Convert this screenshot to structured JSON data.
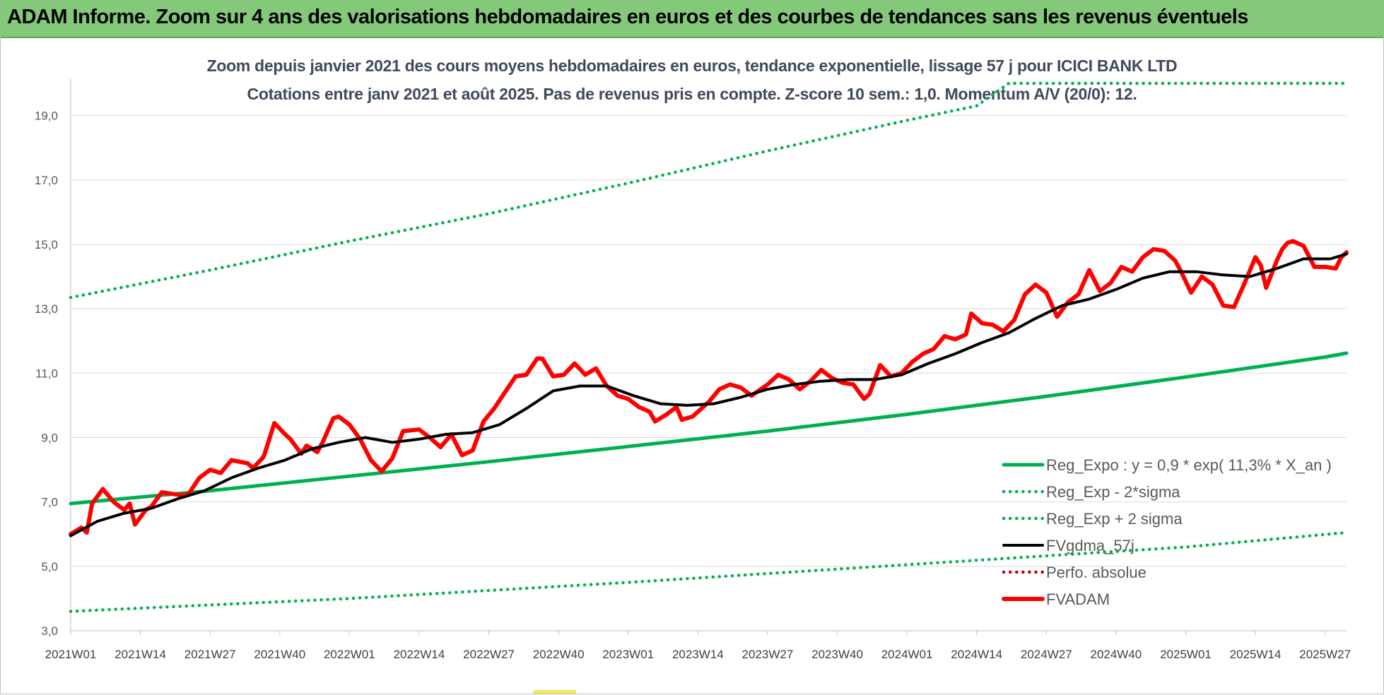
{
  "banner": {
    "title": "ADAM Informe. Zoom sur 4 ans des valorisations hebdomadaires en euros et des courbes de tendances sans les revenus éventuels"
  },
  "colors": {
    "banner_bg": "#84c97a",
    "trend": "#00b050",
    "fvgdma": "#000000",
    "fvadam": "#ff0000",
    "perfo": "#c00000"
  },
  "chart_data": {
    "type": "line",
    "title": "Zoom depuis janvier 2021 des cours moyens hebdomadaires en euros, tendance exponentielle, lissage 57 j pour ICICI BANK LTD",
    "subtitle": "Cotations entre janv 2021 et août 2025.  Pas de revenus pris en compte. Z-score 10 sem.: 1,0. Momentum A/V (20/0): 12.",
    "ylim": [
      3.0,
      20.0
    ],
    "yticks": [
      "3,0",
      "5,0",
      "7,0",
      "9,0",
      "11,0",
      "13,0",
      "15,0",
      "17,0",
      "19,0"
    ],
    "ytick_values": [
      3,
      5,
      7,
      9,
      11,
      13,
      15,
      17,
      19
    ],
    "x_categories": [
      "2021W01",
      "2021W14",
      "2021W27",
      "2021W40",
      "2022W01",
      "2022W14",
      "2022W27",
      "2022W40",
      "2023W01",
      "2023W14",
      "2023W27",
      "2023W40",
      "2024W01",
      "2024W14",
      "2024W27",
      "2024W40",
      "2025W01",
      "2025W14",
      "2025W27"
    ],
    "x_week_index_of_ticks": [
      0,
      13,
      26,
      39,
      52,
      65,
      78,
      91,
      104,
      117,
      130,
      143,
      156,
      169,
      182,
      195,
      208,
      221,
      234
    ],
    "n_weeks": 239,
    "grid": "horizontal",
    "legend_position": "bottom-right",
    "series": [
      {
        "name": "Reg_Expo : y = 0,9 * exp( 11,3% *  X_an )",
        "style": "solid",
        "color": "#00b050",
        "x": [
          0,
          26,
          52,
          78,
          104,
          130,
          156,
          182,
          208,
          234,
          238
        ],
        "y": [
          6.95,
          7.35,
          7.8,
          8.25,
          8.72,
          9.2,
          9.72,
          10.28,
          10.88,
          11.5,
          11.62
        ]
      },
      {
        "name": "Reg_Exp - 2*sigma",
        "style": "dotted",
        "color": "#00b050",
        "x": [
          0,
          52,
          104,
          156,
          208,
          238
        ],
        "y": [
          3.6,
          4.0,
          4.5,
          5.05,
          5.6,
          6.05
        ]
      },
      {
        "name": "Reg_Exp + 2 sigma",
        "style": "dotted",
        "color": "#00b050",
        "x": [
          0,
          26,
          52,
          78,
          104,
          130,
          156,
          169,
          175,
          238
        ],
        "y": [
          13.35,
          14.2,
          15.1,
          15.95,
          16.9,
          17.9,
          18.85,
          19.3,
          20.0,
          20.0
        ]
      },
      {
        "name": "FVgdma_57j",
        "style": "solid",
        "color": "#000000",
        "x": [
          0,
          5,
          10,
          15,
          20,
          25,
          30,
          35,
          40,
          45,
          50,
          55,
          60,
          65,
          70,
          75,
          80,
          85,
          90,
          95,
          100,
          105,
          110,
          115,
          120,
          125,
          130,
          135,
          140,
          145,
          150,
          155,
          160,
          165,
          170,
          175,
          180,
          185,
          190,
          195,
          200,
          205,
          210,
          215,
          220,
          225,
          230,
          235,
          238
        ],
        "y": [
          5.95,
          6.4,
          6.65,
          6.8,
          7.1,
          7.35,
          7.75,
          8.05,
          8.3,
          8.65,
          8.85,
          9.0,
          8.85,
          8.95,
          9.1,
          9.15,
          9.4,
          9.9,
          10.45,
          10.6,
          10.6,
          10.3,
          10.05,
          10.0,
          10.05,
          10.25,
          10.5,
          10.65,
          10.75,
          10.8,
          10.8,
          10.95,
          11.3,
          11.6,
          11.95,
          12.25,
          12.7,
          13.1,
          13.3,
          13.6,
          13.95,
          14.15,
          14.15,
          14.05,
          14.0,
          14.25,
          14.55,
          14.55,
          14.7
        ]
      },
      {
        "name": "Perfo. absolue",
        "style": "dotted",
        "color": "#c00000",
        "x": [],
        "y": []
      },
      {
        "name": "FVADAM",
        "style": "solid-thick",
        "color": "#ff0000",
        "x": [
          0,
          2,
          3,
          4,
          6,
          8,
          10,
          11,
          12,
          14,
          15,
          17,
          19,
          21,
          22,
          24,
          26,
          28,
          30,
          33,
          34,
          36,
          38,
          40,
          41,
          43,
          44,
          46,
          47,
          49,
          50,
          52,
          54,
          56,
          58,
          60,
          62,
          65,
          67,
          69,
          71,
          73,
          75,
          77,
          79,
          81,
          83,
          85,
          87,
          88,
          90,
          92,
          94,
          96,
          98,
          100,
          102,
          104,
          106,
          108,
          109,
          111,
          113,
          114,
          116,
          117,
          119,
          121,
          123,
          125,
          127,
          130,
          132,
          134,
          136,
          138,
          140,
          142,
          144,
          146,
          148,
          149,
          151,
          153,
          155,
          157,
          159,
          161,
          163,
          165,
          167,
          168,
          170,
          172,
          174,
          176,
          178,
          180,
          182,
          184,
          186,
          188,
          190,
          192,
          194,
          196,
          198,
          200,
          202,
          204,
          206,
          207,
          209,
          211,
          213,
          215,
          217,
          219,
          221,
          222,
          223,
          225,
          226,
          227,
          228,
          230,
          232,
          234,
          236,
          237,
          238
        ],
        "y": [
          6.0,
          6.2,
          6.05,
          6.95,
          7.4,
          7.0,
          6.75,
          6.95,
          6.3,
          6.75,
          6.85,
          7.3,
          7.25,
          7.2,
          7.25,
          7.75,
          8.0,
          7.9,
          8.3,
          8.2,
          8.05,
          8.4,
          9.45,
          9.1,
          8.95,
          8.5,
          8.75,
          8.55,
          8.85,
          9.6,
          9.65,
          9.4,
          8.95,
          8.3,
          7.95,
          8.35,
          9.2,
          9.25,
          9.0,
          8.7,
          9.1,
          8.45,
          8.6,
          9.5,
          9.9,
          10.4,
          10.9,
          10.95,
          11.45,
          11.45,
          10.9,
          10.95,
          11.3,
          10.95,
          11.15,
          10.6,
          10.3,
          10.2,
          9.95,
          9.8,
          9.5,
          9.7,
          9.95,
          9.55,
          9.65,
          9.8,
          10.1,
          10.5,
          10.65,
          10.55,
          10.3,
          10.65,
          10.95,
          10.8,
          10.5,
          10.75,
          11.1,
          10.85,
          10.7,
          10.65,
          10.2,
          10.35,
          11.25,
          10.9,
          11.0,
          11.35,
          11.6,
          11.75,
          12.15,
          12.05,
          12.2,
          12.85,
          12.55,
          12.5,
          12.3,
          12.65,
          13.45,
          13.75,
          13.5,
          12.75,
          13.2,
          13.45,
          14.2,
          13.55,
          13.8,
          14.3,
          14.15,
          14.6,
          14.85,
          14.8,
          14.5,
          14.2,
          13.5,
          14.0,
          13.75,
          13.1,
          13.05,
          13.8,
          14.6,
          14.35,
          13.65,
          14.5,
          14.85,
          15.05,
          15.1,
          14.95,
          14.3,
          14.3,
          14.25,
          14.6,
          14.75
        ]
      }
    ]
  }
}
